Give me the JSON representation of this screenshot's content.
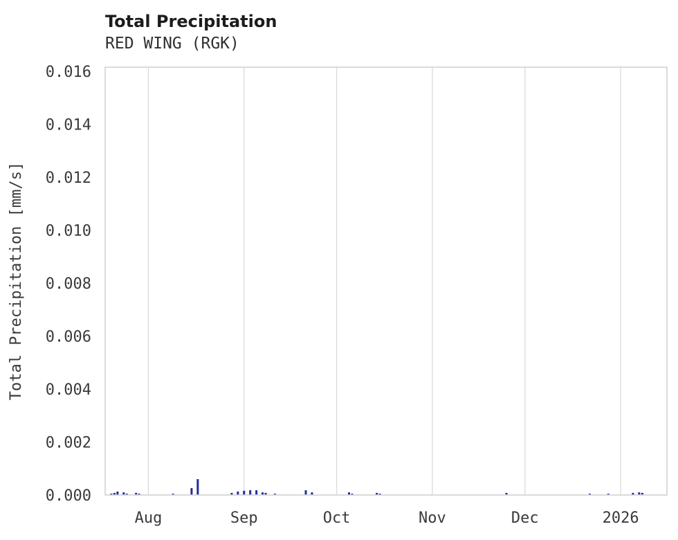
{
  "header": {
    "title": "Total Precipitation",
    "subtitle": "RED WING (RGK)"
  },
  "chart_data": {
    "type": "bar",
    "title": "Total Precipitation",
    "subtitle": "RED WING (RGK)",
    "xlabel": "",
    "ylabel": "Total Precipitation [mm/s]",
    "ylim": [
      0,
      0.016
    ],
    "ytick_step": 0.002,
    "yticks": [
      "0.000",
      "0.002",
      "0.004",
      "0.006",
      "0.008",
      "0.010",
      "0.012",
      "0.014",
      "0.016"
    ],
    "x_domain": [
      "2025-07-18",
      "2026-01-16"
    ],
    "xticks": [
      {
        "date": "2025-08-01",
        "label": "Aug"
      },
      {
        "date": "2025-09-01",
        "label": "Sep"
      },
      {
        "date": "2025-10-01",
        "label": "Oct"
      },
      {
        "date": "2025-11-01",
        "label": "Nov"
      },
      {
        "date": "2025-12-01",
        "label": "Dec"
      },
      {
        "date": "2026-01-01",
        "label": "2026"
      }
    ],
    "grid": "vertical-only",
    "legend": "none",
    "bar_color": "#232c9c",
    "grid_color": "#d9d9d9",
    "border_color": "#cfcfcf",
    "tick_color": "#3a3a3a",
    "series": [
      {
        "name": "Total Precipitation",
        "points": [
          {
            "date": "2025-07-20",
            "value": 5e-05
          },
          {
            "date": "2025-07-21",
            "value": 8e-05
          },
          {
            "date": "2025-07-22",
            "value": 0.00013
          },
          {
            "date": "2025-07-24",
            "value": 0.0001
          },
          {
            "date": "2025-07-25",
            "value": 5e-05
          },
          {
            "date": "2025-07-28",
            "value": 8e-05
          },
          {
            "date": "2025-07-29",
            "value": 5e-05
          },
          {
            "date": "2025-08-09",
            "value": 5e-05
          },
          {
            "date": "2025-08-15",
            "value": 0.00026
          },
          {
            "date": "2025-08-17",
            "value": 0.0006
          },
          {
            "date": "2025-08-28",
            "value": 8e-05
          },
          {
            "date": "2025-08-30",
            "value": 0.00013
          },
          {
            "date": "2025-09-01",
            "value": 0.00016
          },
          {
            "date": "2025-09-03",
            "value": 0.00018
          },
          {
            "date": "2025-09-05",
            "value": 0.00018
          },
          {
            "date": "2025-09-07",
            "value": 0.0001
          },
          {
            "date": "2025-09-08",
            "value": 8e-05
          },
          {
            "date": "2025-09-11",
            "value": 5e-05
          },
          {
            "date": "2025-09-21",
            "value": 0.00018
          },
          {
            "date": "2025-09-23",
            "value": 0.0001
          },
          {
            "date": "2025-10-05",
            "value": 0.0001
          },
          {
            "date": "2025-10-06",
            "value": 5e-05
          },
          {
            "date": "2025-10-14",
            "value": 8e-05
          },
          {
            "date": "2025-10-15",
            "value": 5e-05
          },
          {
            "date": "2025-11-25",
            "value": 8e-05
          },
          {
            "date": "2025-12-22",
            "value": 5e-05
          },
          {
            "date": "2025-12-28",
            "value": 5e-05
          },
          {
            "date": "2026-01-05",
            "value": 8e-05
          },
          {
            "date": "2026-01-07",
            "value": 0.0001
          },
          {
            "date": "2026-01-08",
            "value": 8e-05
          }
        ]
      }
    ]
  }
}
